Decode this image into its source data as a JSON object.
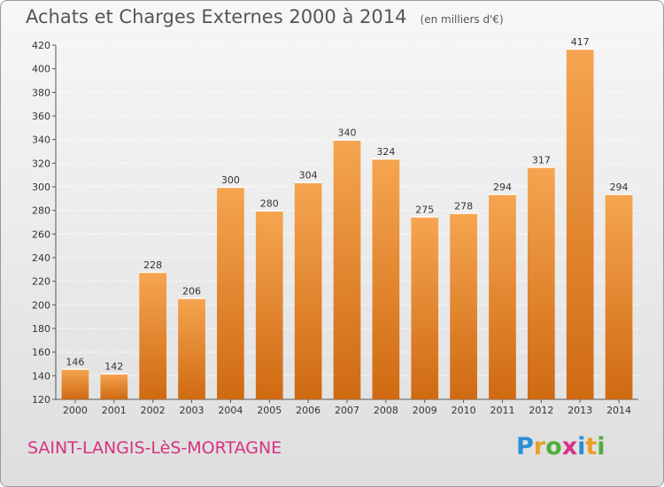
{
  "header": {
    "title": "Achats et Charges Externes 2000 à 2014",
    "unit": "(en milliers d'€)"
  },
  "footer": {
    "commune": "SAINT-LANGIS-LèS-MORTAGNE",
    "brand": [
      "P",
      "r",
      "o",
      "x",
      "i",
      "t",
      "i"
    ],
    "brand_colors": [
      "#2a8fd8",
      "#e8a02a",
      "#4fae3b",
      "#d63384",
      "#2a8fd8",
      "#e8a02a",
      "#4fae3b"
    ]
  },
  "colors": {
    "bar_light": "#f6a550",
    "bar_dark": "#cf6a12",
    "commune_text": "#d63384"
  },
  "chart_data": {
    "type": "bar",
    "title": "Achats et Charges Externes 2000 à 2014",
    "subtitle": "(en milliers d'€)",
    "categories": [
      "2000",
      "2001",
      "2002",
      "2003",
      "2004",
      "2005",
      "2006",
      "2007",
      "2008",
      "2009",
      "2010",
      "2011",
      "2012",
      "2013",
      "2014"
    ],
    "values": [
      146,
      142,
      228,
      206,
      300,
      280,
      304,
      340,
      324,
      275,
      278,
      294,
      317,
      417,
      294
    ],
    "ylim": [
      120,
      420
    ],
    "yticks": [
      120,
      140,
      160,
      180,
      200,
      220,
      240,
      260,
      280,
      300,
      320,
      340,
      360,
      380,
      400,
      420
    ],
    "grid": true,
    "xlabel": "",
    "ylabel": ""
  }
}
